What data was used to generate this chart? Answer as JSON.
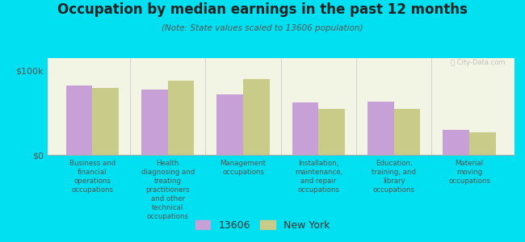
{
  "title": "Occupation by median earnings in the past 12 months",
  "subtitle": "(Note: State values scaled to 13606 population)",
  "background_outer": "#00e0f0",
  "background_inner": "#f2f5e4",
  "categories": [
    "Business and\nfinancial\noperations\noccupations",
    "Health\ndiagnosing and\ntreating\npractitioners\nand other\ntechnical\noccupations",
    "Management\noccupations",
    "Installation,\nmaintenance,\nand repair\noccupations",
    "Education,\ntraining, and\nlibrary\noccupations",
    "Material\nmoving\noccupations"
  ],
  "values_13606": [
    82000,
    78000,
    72000,
    62000,
    63000,
    30000
  ],
  "values_ny": [
    80000,
    88000,
    90000,
    55000,
    55000,
    27000
  ],
  "color_13606": "#c8a0d8",
  "color_ny": "#c8cc88",
  "ylabel_ticks": [
    "$0",
    "$100k"
  ],
  "ytick_vals": [
    0,
    100000
  ],
  "ylim": [
    0,
    115000
  ],
  "legend_13606": "13606",
  "legend_ny": "New York",
  "bar_width": 0.35,
  "watermark": "Ⓡ City-Data.com"
}
